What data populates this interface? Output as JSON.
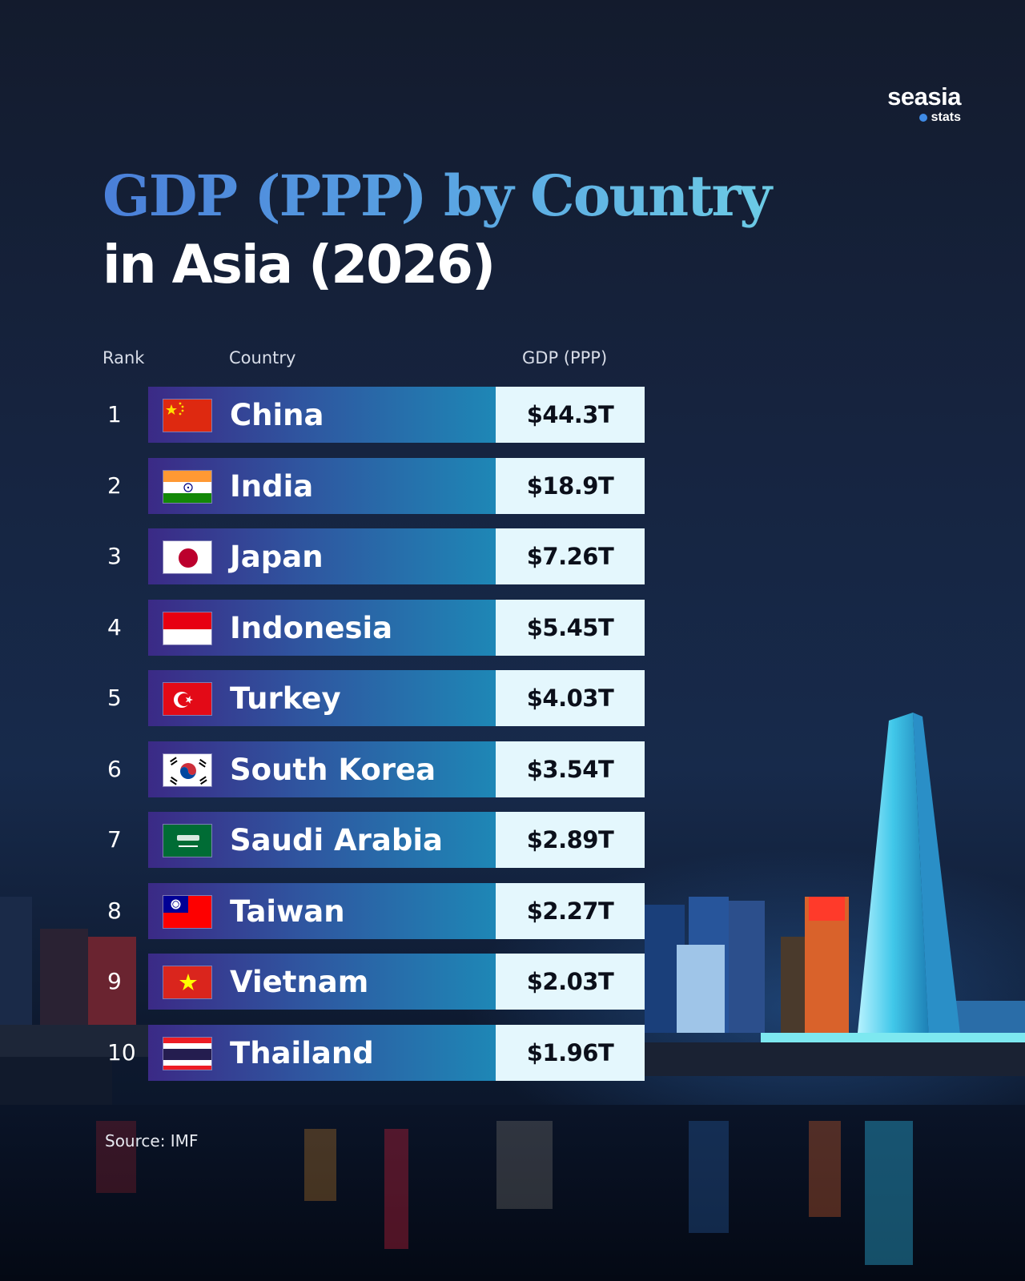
{
  "brand": {
    "name": "seasia",
    "sub": "stats"
  },
  "title": {
    "line1": "GDP (PPP) by Country",
    "line2": "in Asia (2026)"
  },
  "headers": {
    "rank": "Rank",
    "country": "Country",
    "gdp": "GDP (PPP)"
  },
  "source": "Source: IMF",
  "colors": {
    "bar_start": "#3b2a86",
    "bar_end": "#1e87b6",
    "value_bg": "#e4f7fd",
    "title_blue": "#4a7fd9",
    "title_cyan": "#74dbe6"
  },
  "chart_data": {
    "type": "table",
    "title": "GDP (PPP) by Country in Asia (2026)",
    "columns": [
      "Rank",
      "Country",
      "GDP (PPP)"
    ],
    "rows": [
      {
        "rank": "1",
        "country": "China",
        "gdp": "$44.3T",
        "value": 44.3,
        "flag": "china-flag-icon"
      },
      {
        "rank": "2",
        "country": "India",
        "gdp": "$18.9T",
        "value": 18.9,
        "flag": "india-flag-icon"
      },
      {
        "rank": "3",
        "country": "Japan",
        "gdp": "$7.26T",
        "value": 7.26,
        "flag": "japan-flag-icon"
      },
      {
        "rank": "4",
        "country": "Indonesia",
        "gdp": "$5.45T",
        "value": 5.45,
        "flag": "indonesia-flag-icon"
      },
      {
        "rank": "5",
        "country": "Turkey",
        "gdp": "$4.03T",
        "value": 4.03,
        "flag": "turkey-flag-icon"
      },
      {
        "rank": "6",
        "country": "South Korea",
        "gdp": "$3.54T",
        "value": 3.54,
        "flag": "south-korea-flag-icon"
      },
      {
        "rank": "7",
        "country": "Saudi Arabia",
        "gdp": "$2.89T",
        "value": 2.89,
        "flag": "saudi-arabia-flag-icon"
      },
      {
        "rank": "8",
        "country": "Taiwan",
        "gdp": "$2.27T",
        "value": 2.27,
        "flag": "taiwan-flag-icon"
      },
      {
        "rank": "9",
        "country": "Vietnam",
        "gdp": "$2.03T",
        "value": 2.03,
        "flag": "vietnam-flag-icon"
      },
      {
        "rank": "10",
        "country": "Thailand",
        "gdp": "$1.96T",
        "value": 1.96,
        "flag": "thailand-flag-icon"
      }
    ]
  }
}
